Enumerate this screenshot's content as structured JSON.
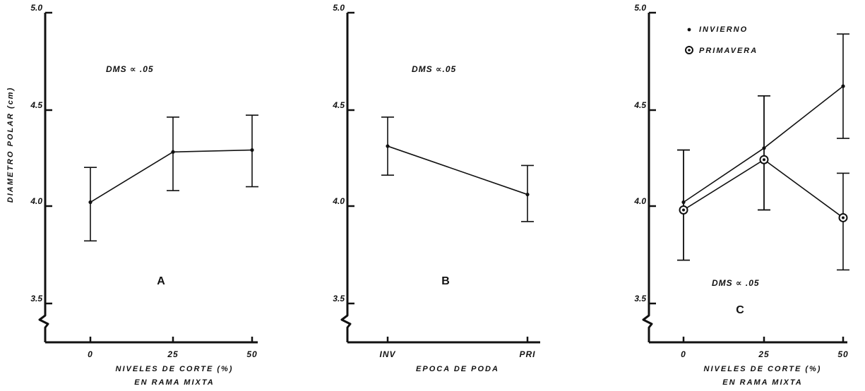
{
  "figure": {
    "y_axis_title": "DIAMETRO POLAR (cm)"
  },
  "chart_data": [
    {
      "type": "line",
      "panel": "A",
      "ylabel": "DIAMETRO POLAR (cm)",
      "xlabel": [
        "NIVELES DE CORTE (%)",
        "EN RAMA MIXTA"
      ],
      "annotation": "DMS ∝ .05",
      "ylim": [
        3.5,
        5.0
      ],
      "y_ticks": [
        "3.5",
        "4.0",
        "4.5",
        "5.0"
      ],
      "y_break": true,
      "categories": [
        "0",
        "25",
        "50"
      ],
      "series": [
        {
          "values": [
            4.02,
            4.28,
            4.29
          ],
          "err_low": [
            3.82,
            4.08,
            4.1
          ],
          "err_high": [
            4.2,
            4.46,
            4.47
          ],
          "marker": "dot"
        }
      ]
    },
    {
      "type": "line",
      "panel": "B",
      "xlabel": [
        "EPOCA DE PODA"
      ],
      "annotation": "DMS ∝.05",
      "ylim": [
        3.5,
        5.0
      ],
      "y_ticks": [
        "3.5",
        "4.0",
        "4.5",
        "5.0"
      ],
      "y_break": true,
      "categories": [
        "INV",
        "PRI"
      ],
      "series": [
        {
          "values": [
            4.31,
            4.06
          ],
          "err_low": [
            4.16,
            3.92
          ],
          "err_high": [
            4.46,
            4.21
          ],
          "marker": "dot"
        }
      ]
    },
    {
      "type": "line",
      "panel": "C",
      "xlabel": [
        "NIVELES DE CORTE (%)",
        "EN RAMA MIXTA"
      ],
      "annotation": "DMS ∝ .05",
      "ylim": [
        3.5,
        5.0
      ],
      "y_ticks": [
        "3.5",
        "4.0",
        "4.5",
        "5.0"
      ],
      "y_break": true,
      "categories": [
        "0",
        "25",
        "50"
      ],
      "legend": {
        "position": "top-left"
      },
      "series": [
        {
          "name": "INVIERNO",
          "values": [
            4.02,
            4.3,
            4.62
          ],
          "err_low": [
            3.72,
            3.98,
            4.35
          ],
          "err_high": [
            4.29,
            4.57,
            4.89
          ],
          "marker": "dot"
        },
        {
          "name": "PRIMAVERA",
          "values": [
            3.98,
            4.24,
            3.94
          ],
          "err_low": [
            3.72,
            3.98,
            3.67
          ],
          "err_high": [
            4.29,
            4.57,
            4.17
          ],
          "marker": "circled-dot"
        }
      ]
    }
  ]
}
